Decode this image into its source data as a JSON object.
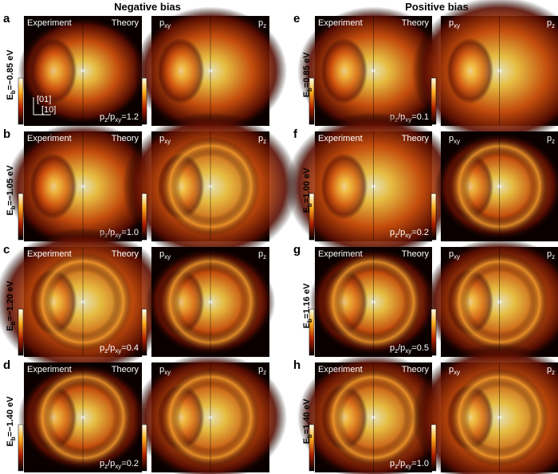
{
  "columns": [
    {
      "title": "Negative bias"
    },
    {
      "title": "Positive bias"
    }
  ],
  "labels": {
    "experiment": "Experiment",
    "theory": "Theory",
    "p": "p",
    "xy": "xy",
    "z": "z",
    "slash": "/",
    "equals": "=",
    "E": "E",
    "b": "b"
  },
  "axes": {
    "y": "[01]",
    "x": "[10]"
  },
  "panels": [
    {
      "letter": "a",
      "energy": "−0.85 eV",
      "ratio": "1.2"
    },
    {
      "letter": "b",
      "energy": "−1.05 eV",
      "ratio": "1.0"
    },
    {
      "letter": "c",
      "energy": "−1.20 eV",
      "ratio": "0.4"
    },
    {
      "letter": "d",
      "energy": "−1.40 eV",
      "ratio": "0.2"
    },
    {
      "letter": "e",
      "energy": "0.85 eV",
      "ratio": "0.1"
    },
    {
      "letter": "f",
      "energy": "1.00 eV",
      "ratio": "0.2"
    },
    {
      "letter": "g",
      "energy": "1.16 eV",
      "ratio": "0.5"
    },
    {
      "letter": "h",
      "energy": "1.40 eV",
      "ratio": "1.0"
    }
  ]
}
